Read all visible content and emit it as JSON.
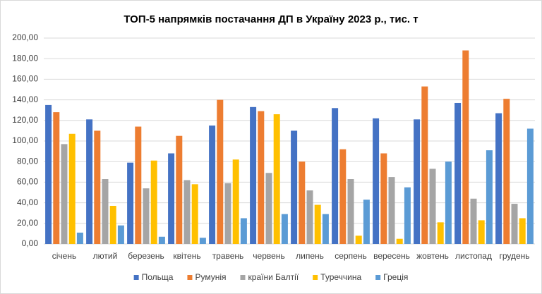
{
  "chart_data": {
    "type": "bar",
    "title": "ТОП-5 напрямків постачання ДП в Україну 2023 р., тис. т",
    "categories": [
      "січень",
      "лютий",
      "березень",
      "квітень",
      "травень",
      "червень",
      "липень",
      "серпень",
      "вересень",
      "жовтень",
      "листопад",
      "грудень"
    ],
    "series": [
      {
        "name": "Польща",
        "color": "#4472c4",
        "values": [
          135,
          121,
          79,
          88,
          115,
          133,
          110,
          132,
          122,
          121,
          137,
          127
        ]
      },
      {
        "name": "Румунія",
        "color": "#ed7d31",
        "values": [
          128,
          110,
          114,
          105,
          140,
          129,
          80,
          92,
          88,
          153,
          188,
          141
        ]
      },
      {
        "name": "країни Балтії",
        "color": "#a5a5a5",
        "values": [
          97,
          63,
          54,
          62,
          59,
          69,
          52,
          63,
          65,
          73,
          44,
          39
        ]
      },
      {
        "name": "Туреччина",
        "color": "#ffc000",
        "values": [
          107,
          37,
          81,
          58,
          82,
          126,
          38,
          8,
          5,
          21,
          23,
          25
        ]
      },
      {
        "name": "Греція",
        "color": "#5b9bd5",
        "values": [
          11,
          18,
          7,
          6,
          25,
          29,
          29,
          43,
          55,
          80,
          91,
          112
        ]
      }
    ],
    "ylim": [
      0,
      200
    ],
    "yticks": [
      {
        "value": 0,
        "label": "0,00"
      },
      {
        "value": 20,
        "label": "20,00"
      },
      {
        "value": 40,
        "label": "40,00"
      },
      {
        "value": 60,
        "label": "60,00"
      },
      {
        "value": 80,
        "label": "80,00"
      },
      {
        "value": 100,
        "label": "100,00"
      },
      {
        "value": 120,
        "label": "120,00"
      },
      {
        "value": 140,
        "label": "140,00"
      },
      {
        "value": 160,
        "label": "160,00"
      },
      {
        "value": 180,
        "label": "180,00"
      },
      {
        "value": 200,
        "label": "200,00"
      }
    ],
    "grid": true,
    "legend": "bottom"
  }
}
